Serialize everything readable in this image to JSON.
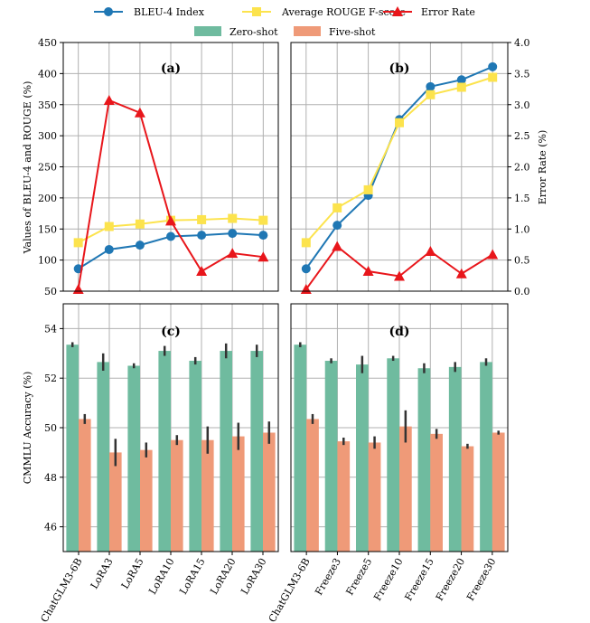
{
  "legend": {
    "items": [
      {
        "label": "BLEU-4 Index",
        "color": "#1f77b4",
        "marker": "circle"
      },
      {
        "label": "Average ROUGE F-score",
        "color": "#fce34d",
        "marker": "square"
      },
      {
        "label": "Error Rate",
        "color": "#e8161b",
        "marker": "triangle"
      },
      {
        "label": "Zero-shot",
        "color": "#6fbb9f",
        "marker": "bar"
      },
      {
        "label": "Five-shot",
        "color": "#ef9a78",
        "marker": "bar"
      }
    ]
  },
  "panels": {
    "a": "(a)",
    "b": "(b)",
    "c": "(c)",
    "d": "(d)"
  },
  "axes": {
    "top_left_ylabel": "Values of BLEU-4 and ROUGE (%)",
    "top_right_ylabel": "Error Rate (%)",
    "bottom_ylabel": "CMMLU Accuracy (%)"
  },
  "colors": {
    "bleu": "#1f77b4",
    "rouge": "#fce34d",
    "error": "#e8161b",
    "zero": "#6fbb9f",
    "five": "#ef9a78"
  },
  "chart_data": [
    {
      "type": "line",
      "panel": "(a)",
      "categories": [
        "ChatGLM3-6B",
        "LoRA3",
        "LoRA5",
        "LoRA10",
        "LoRA15",
        "LoRA20",
        "LoRA30"
      ],
      "ylim": [
        50,
        450
      ],
      "y2lim": [
        0,
        4
      ],
      "yticks": [
        50,
        100,
        150,
        200,
        250,
        300,
        350,
        400,
        450
      ],
      "y2ticks": [
        "0.0",
        "0.5",
        "1.0",
        "1.5",
        "2.0",
        "2.5",
        "3.0",
        "3.5",
        "4.0"
      ],
      "grid": true,
      "series": [
        {
          "name": "BLEU-4 Index",
          "axis": "left",
          "values": [
            86,
            117,
            124,
            138,
            140,
            143,
            140
          ]
        },
        {
          "name": "Average ROUGE F-score",
          "axis": "left",
          "values": [
            128,
            154,
            158,
            164,
            165,
            167,
            164
          ]
        },
        {
          "name": "Error Rate",
          "axis": "right",
          "values": [
            0.03,
            3.07,
            2.87,
            1.13,
            0.32,
            0.61,
            0.55
          ]
        }
      ]
    },
    {
      "type": "line",
      "panel": "(b)",
      "categories": [
        "ChatGLM3-6B",
        "Freeze3",
        "Freeze5",
        "Freeze10",
        "Freeze15",
        "Freeze20",
        "Freeze30"
      ],
      "ylim": [
        50,
        450
      ],
      "y2lim": [
        0,
        4
      ],
      "grid": true,
      "series": [
        {
          "name": "BLEU-4 Index",
          "axis": "left",
          "values": [
            86,
            156,
            204,
            326,
            379,
            390,
            411
          ]
        },
        {
          "name": "Average ROUGE F-score",
          "axis": "left",
          "values": [
            128,
            184,
            213,
            321,
            366,
            378,
            394
          ]
        },
        {
          "name": "Error Rate",
          "axis": "right",
          "values": [
            0.03,
            0.72,
            0.32,
            0.24,
            0.64,
            0.28,
            0.59
          ]
        }
      ]
    },
    {
      "type": "bar",
      "panel": "(c)",
      "categories": [
        "ChatGLM3-6B",
        "LoRA3",
        "LoRA5",
        "LoRA10",
        "LoRA15",
        "LoRA20",
        "LoRA30"
      ],
      "ylim": [
        45,
        55
      ],
      "yticks": [
        46,
        48,
        50,
        52,
        54
      ],
      "grid": true,
      "series": [
        {
          "name": "Zero-shot",
          "values": [
            53.35,
            52.65,
            52.5,
            53.1,
            52.7,
            53.1,
            53.1
          ],
          "err": [
            0.1,
            0.35,
            0.1,
            0.2,
            0.15,
            0.3,
            0.25
          ]
        },
        {
          "name": "Five-shot",
          "values": [
            50.35,
            49.0,
            49.1,
            49.5,
            49.5,
            49.65,
            49.8
          ],
          "err": [
            0.2,
            0.55,
            0.3,
            0.2,
            0.55,
            0.55,
            0.45
          ]
        }
      ]
    },
    {
      "type": "bar",
      "panel": "(d)",
      "categories": [
        "ChatGLM3-6B",
        "Freeze3",
        "Freeze5",
        "Freeze10",
        "Freeze15",
        "Freeze20",
        "Freeze30"
      ],
      "ylim": [
        45,
        55
      ],
      "grid": true,
      "series": [
        {
          "name": "Zero-shot",
          "values": [
            53.35,
            52.7,
            52.55,
            52.8,
            52.4,
            52.45,
            52.65
          ],
          "err": [
            0.1,
            0.1,
            0.35,
            0.1,
            0.2,
            0.2,
            0.15
          ]
        },
        {
          "name": "Five-shot",
          "values": [
            50.35,
            49.45,
            49.4,
            50.05,
            49.75,
            49.25,
            49.8
          ],
          "err": [
            0.2,
            0.15,
            0.25,
            0.65,
            0.2,
            0.1,
            0.08
          ]
        }
      ]
    }
  ]
}
